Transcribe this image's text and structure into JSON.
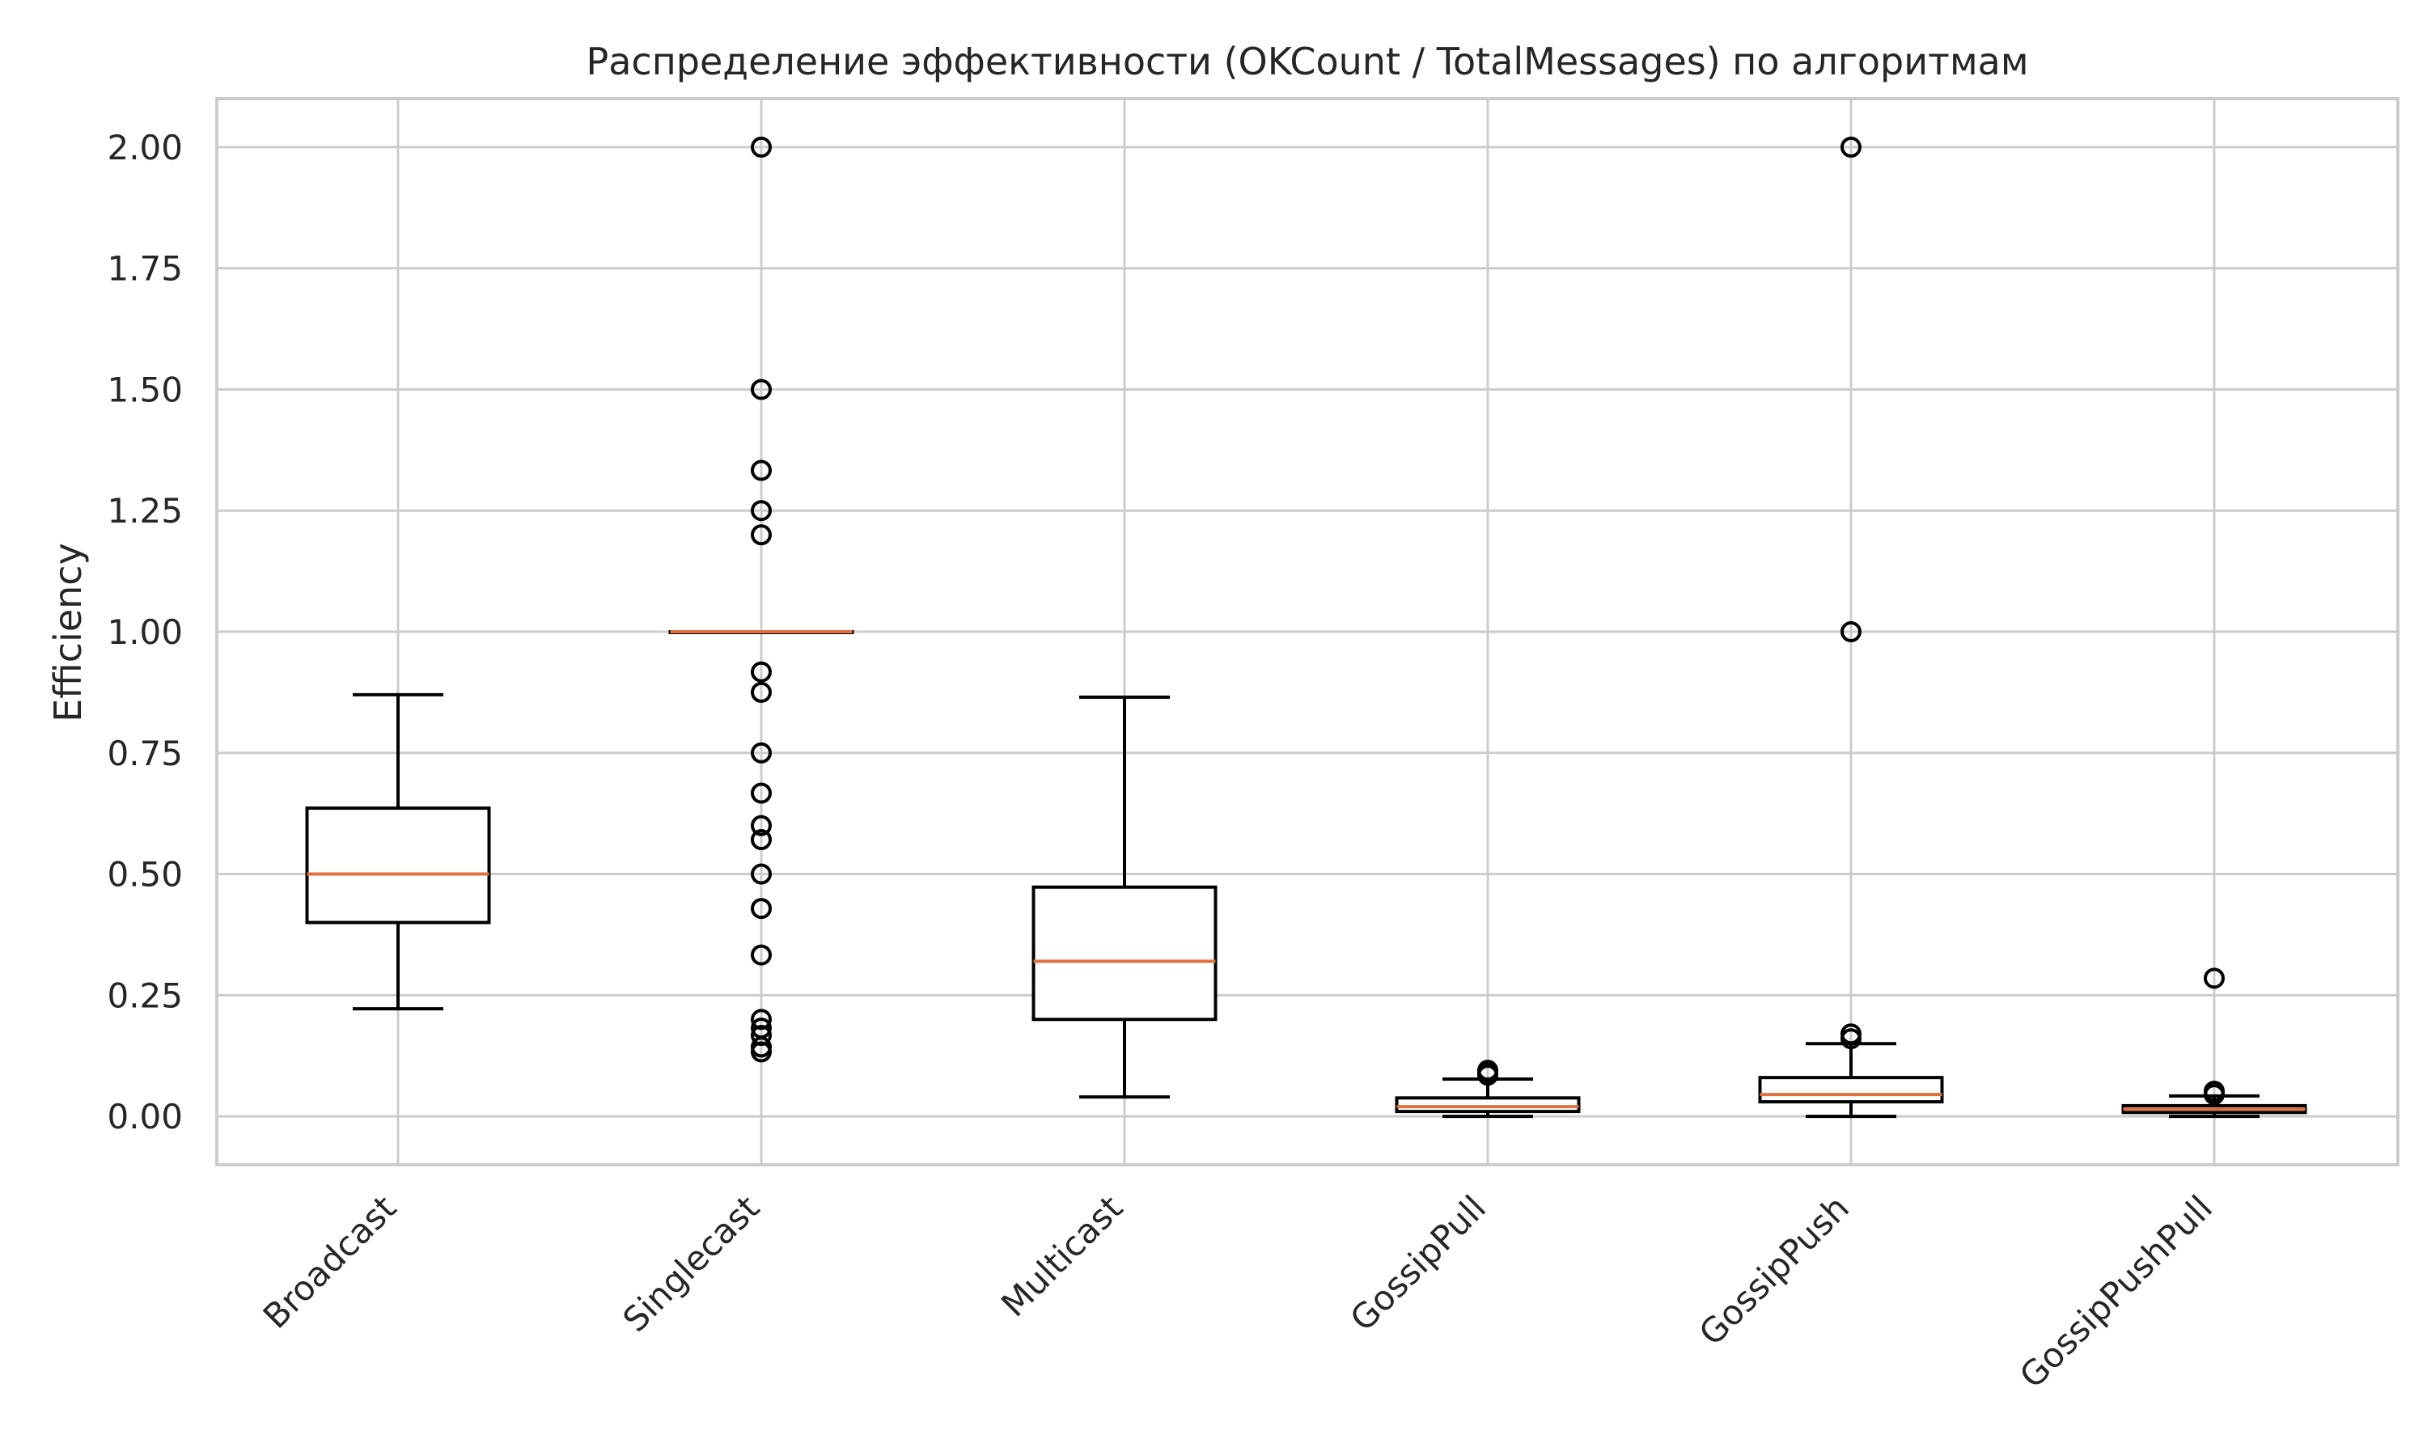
{
  "chart_data": {
    "type": "boxplot",
    "title": "Распределение эффективности (OKCount / TotalMessages) по алгоритмам",
    "xlabel": "",
    "ylabel": "Efficiency",
    "ylim": [
      -0.1,
      2.1
    ],
    "yticks": [
      0.0,
      0.25,
      0.5,
      0.75,
      1.0,
      1.25,
      1.5,
      1.75,
      2.0
    ],
    "ytick_labels": [
      "0.00",
      "0.25",
      "0.50",
      "0.75",
      "1.00",
      "1.25",
      "1.50",
      "1.75",
      "2.00"
    ],
    "grid": true,
    "categories": [
      "Broadcast",
      "Singlecast",
      "Multicast",
      "GossipPull",
      "GossipPush",
      "GossipPushPull"
    ],
    "boxes": [
      {
        "name": "Broadcast",
        "whisker_low": 0.222,
        "q1": 0.4,
        "median": 0.5,
        "q3": 0.636,
        "whisker_high": 0.87,
        "outliers": []
      },
      {
        "name": "Singlecast",
        "whisker_low": 1.0,
        "q1": 1.0,
        "median": 1.0,
        "q3": 1.0,
        "whisker_high": 1.0,
        "outliers": [
          2.0,
          1.5,
          1.333,
          1.25,
          1.2,
          0.917,
          0.875,
          0.75,
          0.667,
          0.6,
          0.571,
          0.5,
          0.429,
          0.333,
          0.2,
          0.182,
          0.167,
          0.143,
          0.133
        ]
      },
      {
        "name": "Multicast",
        "whisker_low": 0.04,
        "q1": 0.2,
        "median": 0.32,
        "q3": 0.473,
        "whisker_high": 0.865,
        "outliers": []
      },
      {
        "name": "GossipPull",
        "whisker_low": 0.0,
        "q1": 0.01,
        "median": 0.02,
        "q3": 0.038,
        "whisker_high": 0.077,
        "outliers": [
          0.085,
          0.09,
          0.095
        ]
      },
      {
        "name": "GossipPush",
        "whisker_low": 0.0,
        "q1": 0.03,
        "median": 0.045,
        "q3": 0.08,
        "whisker_high": 0.15,
        "outliers": [
          0.16,
          0.17,
          1.0,
          2.0
        ]
      },
      {
        "name": "GossipPushPull",
        "whisker_low": 0.0,
        "q1": 0.008,
        "median": 0.015,
        "q3": 0.022,
        "whisker_high": 0.042,
        "outliers": [
          0.045,
          0.052,
          0.285
        ]
      }
    ]
  }
}
